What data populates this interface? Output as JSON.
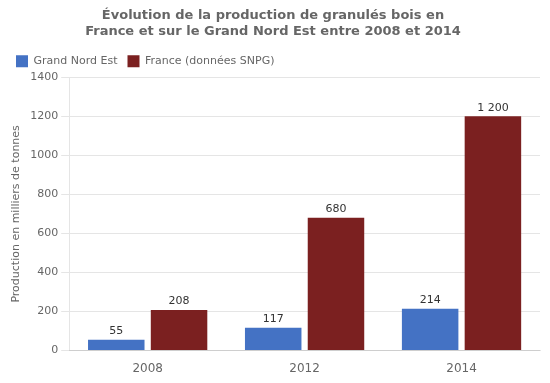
{
  "chart_data": {
    "type": "bar",
    "title": "Évolution de la production de granulés bois en\nFrance et sur le Grand Nord Est entre 2008 et 2014",
    "categories": [
      "2008",
      "2012",
      "2014"
    ],
    "series": [
      {
        "name": "Grand Nord Est",
        "color": "#4472C4",
        "values": [
          55,
          117,
          214
        ]
      },
      {
        "name": "France (données SNPG)",
        "color": "#7B2020",
        "values": [
          208,
          680,
          1200
        ],
        "value_labels": [
          "208",
          "680",
          "1 200"
        ]
      }
    ],
    "ylabel": "Production en milliers de tonnes",
    "ylim": [
      0,
      1400
    ],
    "yticks": [
      0,
      200,
      400,
      600,
      800,
      1000,
      1200,
      1400
    ],
    "grid": "y",
    "legend": "upper left",
    "data_labels": true
  }
}
